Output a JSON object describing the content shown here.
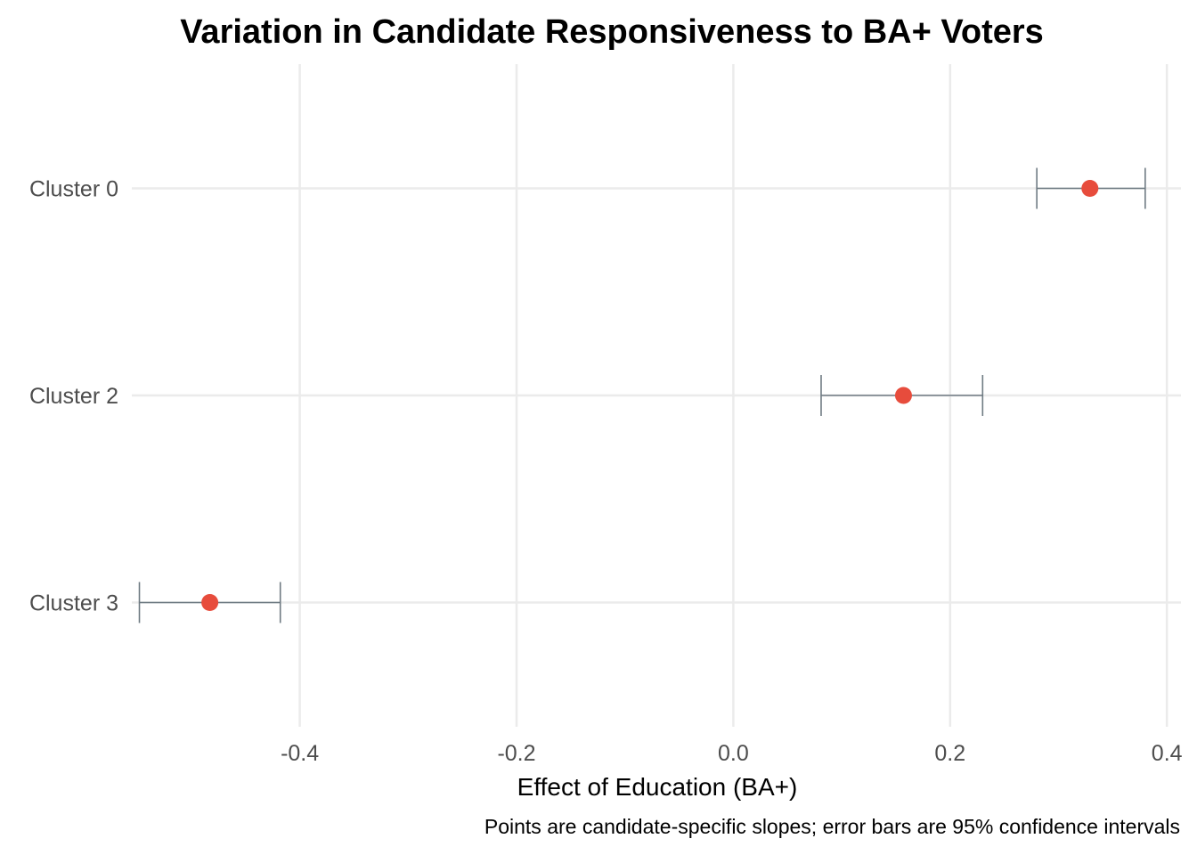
{
  "chart_data": {
    "type": "scatter",
    "title": "Variation in Candidate Responsiveness to BA+ Voters",
    "xlabel": "Effect of Education (BA+)",
    "ylabel": "",
    "caption": "Points are candidate-specific slopes; error bars are 95% confidence intervals",
    "xlim": [
      -0.555,
      0.413
    ],
    "x_ticks": [
      -0.4,
      -0.2,
      0.0,
      0.2,
      0.4
    ],
    "x_tick_labels": [
      "-0.4",
      "-0.2",
      "0.0",
      "0.2",
      "0.4"
    ],
    "categories": [
      "Cluster 0",
      "Cluster 2",
      "Cluster 3"
    ],
    "estimate": [
      0.329,
      0.157,
      -0.483
    ],
    "lower": [
      0.28,
      0.081,
      -0.548
    ],
    "upper": [
      0.38,
      0.23,
      -0.418
    ],
    "point_color": "#e74c3c",
    "errorbar_color": "#6f7b83",
    "grid": true,
    "legend": "none"
  }
}
